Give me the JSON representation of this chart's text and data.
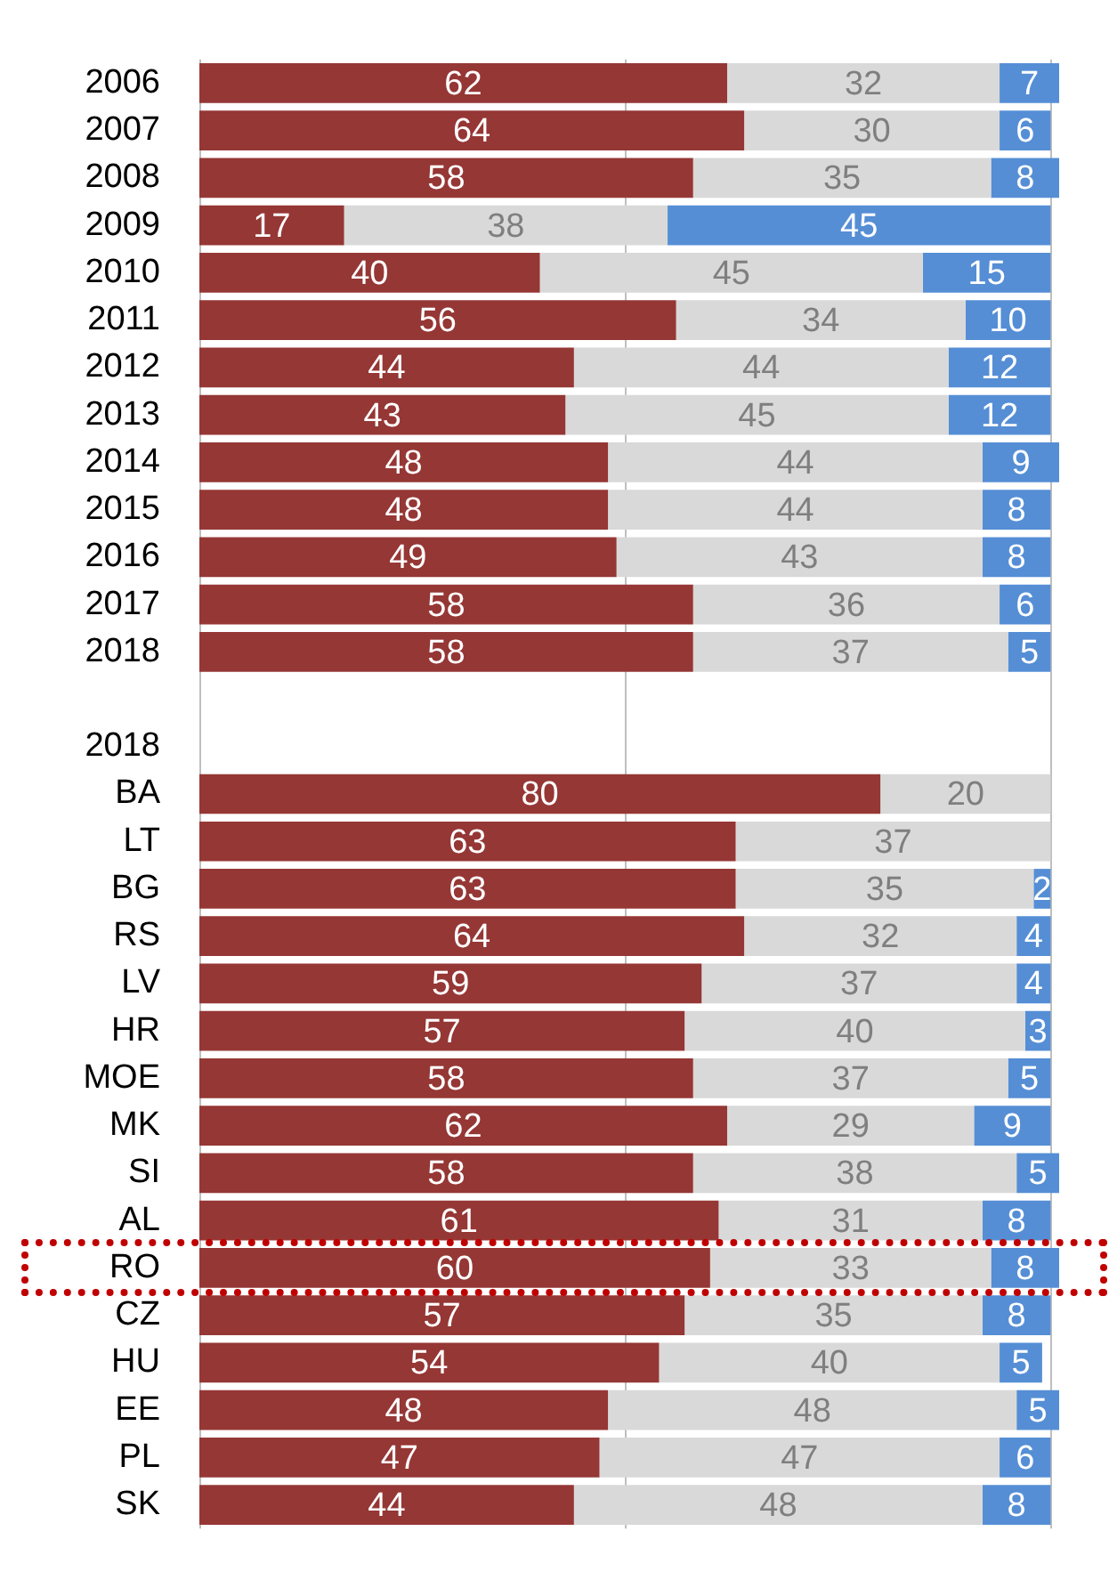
{
  "chart_data": {
    "type": "bar",
    "orientation": "horizontal",
    "stacked": true,
    "data_labels": true,
    "legend": false,
    "tick_labels": "y",
    "categories": [
      "2006",
      "2007",
      "2008",
      "2009",
      "2010",
      "2011",
      "2012",
      "2013",
      "2014",
      "2015",
      "2016",
      "2017",
      "2018",
      null,
      "2018",
      "BA",
      "LT",
      "BG",
      "RS",
      "LV",
      "HR",
      "MOE",
      "MK",
      "SI",
      "AL",
      "RO",
      "CZ",
      "HU",
      "EE",
      "PL",
      "SK"
    ],
    "xlim": [
      0,
      101
    ],
    "ref_lines": [
      {
        "axis": "x",
        "value": 0
      },
      {
        "axis": "x",
        "value": 50
      },
      {
        "axis": "x",
        "value": 100
      }
    ],
    "series": [
      {
        "color": "#953735",
        "values": [
          62,
          64,
          58,
          17,
          40,
          56,
          44,
          43,
          48,
          48,
          49,
          58,
          58,
          null,
          null,
          80,
          63,
          63,
          64,
          59,
          57,
          58,
          62,
          58,
          61,
          60,
          57,
          54,
          48,
          47,
          44
        ]
      },
      {
        "color": "#d9d9d9",
        "values": [
          32,
          30,
          35,
          38,
          45,
          34,
          44,
          45,
          44,
          44,
          43,
          36,
          37,
          null,
          null,
          20,
          37,
          35,
          32,
          37,
          40,
          37,
          29,
          38,
          31,
          33,
          35,
          40,
          48,
          47,
          48
        ]
      },
      {
        "color": "#558ed5",
        "values": [
          7,
          6,
          8,
          45,
          15,
          10,
          12,
          12,
          9,
          8,
          8,
          6,
          5,
          null,
          null,
          null,
          null,
          2,
          4,
          4,
          3,
          5,
          9,
          5,
          8,
          8,
          8,
          5,
          5,
          6,
          8
        ]
      }
    ]
  }
}
